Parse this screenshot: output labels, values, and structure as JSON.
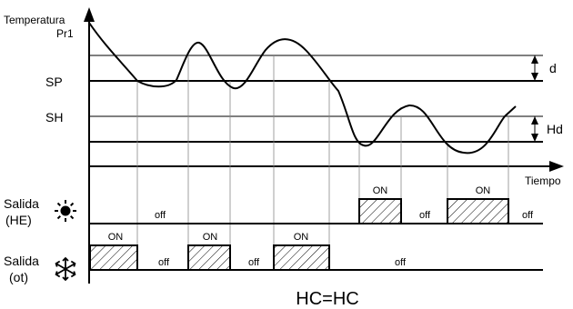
{
  "axis": {
    "y_label_line1": "Temperatura",
    "y_label_line2": "Pr1",
    "x_label": "Tiempo"
  },
  "levels": {
    "sp": "SP",
    "sh": "SH",
    "d": "d",
    "hd": "Hd"
  },
  "outputs": {
    "he_line1": "Salida",
    "he_line2": "(HE)",
    "he_icon": "sun-icon",
    "ot_line1": "Salida",
    "ot_line2": "(ot)",
    "ot_icon": "snowflake-icon"
  },
  "states": {
    "on": "ON",
    "off": "off"
  },
  "caption": "HC=HC"
}
